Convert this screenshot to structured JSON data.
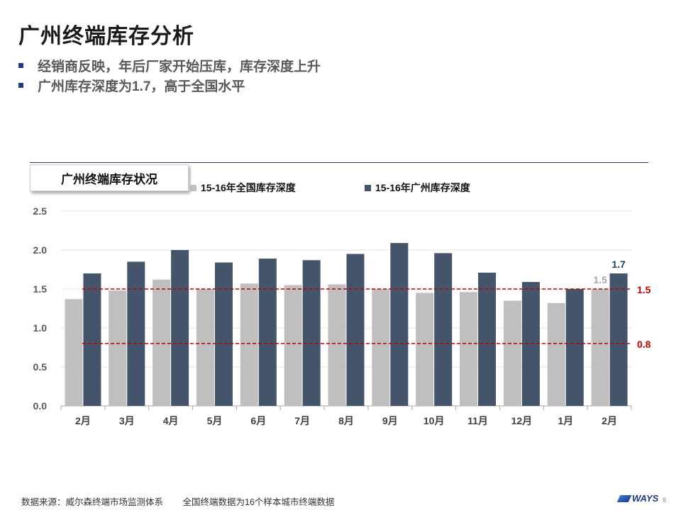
{
  "slide": {
    "title": "广州终端库存分析",
    "bullets": [
      "经销商反映，年后厂家开始压库，库存深度上升",
      "广州库存深度为1.7，高于全国水平"
    ],
    "footer_source": "数据来源：威尔森终端市场监测体系",
    "footer_note": "全国终端数据为16个样本城市终端数据",
    "logo_text": "WAYS",
    "page_number": "8"
  },
  "chart_data": {
    "type": "bar",
    "title": "广州终端库存状况",
    "categories": [
      "2月",
      "3月",
      "4月",
      "5月",
      "6月",
      "7月",
      "8月",
      "9月",
      "10月",
      "11月",
      "12月",
      "1月",
      "2月"
    ],
    "series": [
      {
        "name": "15-16年全国库存深度",
        "color": "#bfbfbf",
        "values": [
          1.37,
          1.48,
          1.62,
          1.5,
          1.57,
          1.55,
          1.56,
          1.5,
          1.45,
          1.46,
          1.35,
          1.32,
          1.5
        ]
      },
      {
        "name": "15-16年广州库存深度",
        "color": "#44546a",
        "values": [
          1.7,
          1.85,
          2.0,
          1.84,
          1.89,
          1.87,
          1.95,
          2.09,
          1.96,
          1.71,
          1.59,
          1.5,
          1.7
        ]
      }
    ],
    "ylim": [
      0,
      2.5
    ],
    "yticks": [
      "0.0",
      "0.5",
      "1.0",
      "1.5",
      "2.0",
      "2.5"
    ],
    "grid": true,
    "legend_position": "top",
    "reference_lines": [
      {
        "value": 1.5,
        "label": "1.5",
        "color": "#c00000"
      },
      {
        "value": 0.8,
        "label": "0.8",
        "color": "#c00000"
      }
    ],
    "data_labels": [
      {
        "series": 0,
        "index": 12,
        "text": "1.5",
        "color": "#a6a6a6"
      },
      {
        "series": 1,
        "index": 12,
        "text": "1.7",
        "color": "#1f3a64"
      }
    ]
  }
}
